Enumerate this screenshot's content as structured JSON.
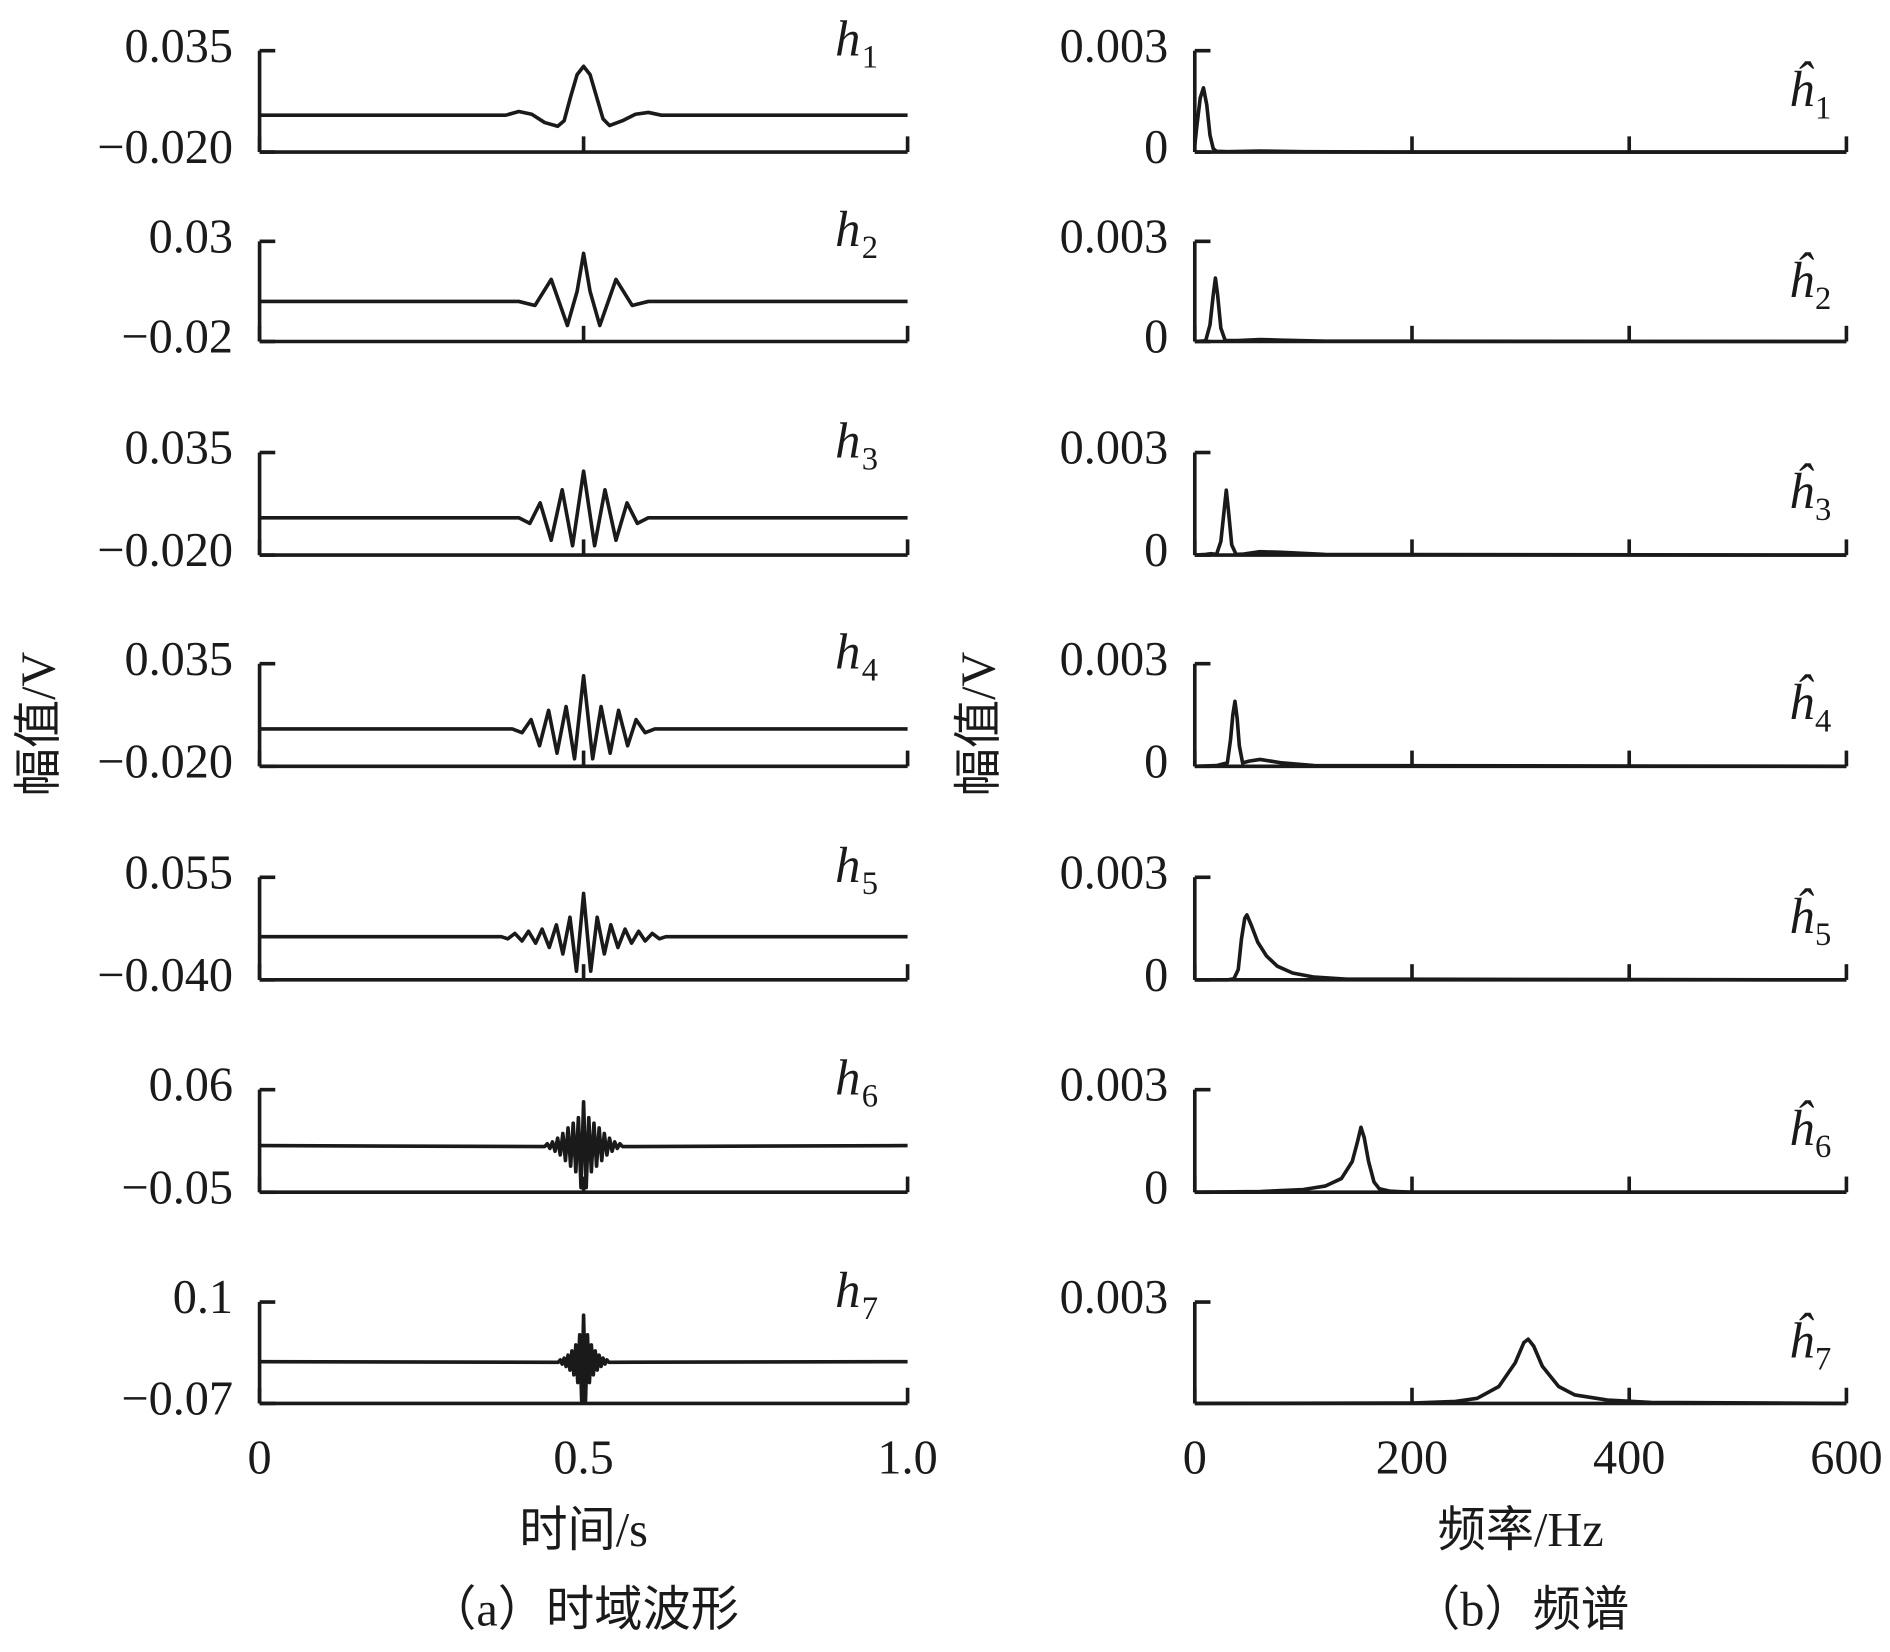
{
  "chart_data": [
    {
      "type": "line",
      "label": "h",
      "subscript": "1",
      "color": "#1a1a1a",
      "xlim": [
        0,
        1
      ],
      "xticks": [
        0,
        0.5,
        1
      ],
      "ylim": [
        -0.02,
        0.035
      ],
      "yticks": [
        {
          "value": -0.02,
          "label": "−0.020"
        },
        0.035
      ],
      "x": [
        0,
        0.38,
        0.4,
        0.42,
        0.44,
        0.46,
        0.47,
        0.48,
        0.49,
        0.5,
        0.51,
        0.52,
        0.53,
        0.54,
        0.56,
        0.58,
        0.6,
        0.62,
        1
      ],
      "values": [
        0,
        0,
        0.002,
        0.0005,
        -0.004,
        -0.006,
        -0.003,
        0.01,
        0.022,
        0.0265,
        0.022,
        0.01,
        -0.002,
        -0.0056,
        -0.003,
        0.0005,
        0.0015,
        0,
        0
      ]
    },
    {
      "type": "line",
      "label": "h",
      "subscript": "2",
      "color": "#1a1a1a",
      "xlim": [
        0,
        1
      ],
      "xticks": [
        0,
        0.5,
        1
      ],
      "ylim": [
        -0.02,
        0.03
      ],
      "yticks": [
        {
          "value": -0.02,
          "label": "−0.02"
        },
        0.03
      ],
      "x": [
        0,
        0.4,
        0.425,
        0.45,
        0.475,
        0.49,
        0.5,
        0.51,
        0.525,
        0.55,
        0.575,
        0.6,
        1
      ],
      "values": [
        0,
        0,
        -0.002,
        0.011,
        -0.012,
        0.005,
        0.024,
        0.005,
        -0.012,
        0.011,
        -0.002,
        0,
        0
      ]
    },
    {
      "type": "line",
      "label": "h",
      "subscript": "3",
      "color": "#1a1a1a",
      "xlim": [
        0,
        1
      ],
      "xticks": [
        0,
        0.5,
        1
      ],
      "ylim": [
        -0.02,
        0.035
      ],
      "yticks": [
        {
          "value": -0.02,
          "label": "−0.020"
        },
        0.035
      ],
      "x": [
        0,
        0.4,
        0.417,
        0.433,
        0.45,
        0.467,
        0.483,
        0.5,
        0.517,
        0.533,
        0.55,
        0.567,
        0.583,
        0.6,
        1
      ],
      "values": [
        0,
        0,
        -0.003,
        0.008,
        -0.012,
        0.015,
        -0.015,
        0.025,
        -0.015,
        0.015,
        -0.012,
        0.008,
        -0.003,
        0,
        0
      ]
    },
    {
      "type": "line",
      "label": "h",
      "subscript": "4",
      "color": "#1a1a1a",
      "ylabel": "幅值/V",
      "xlim": [
        0,
        1
      ],
      "xticks": [
        0,
        0.5,
        1
      ],
      "ylim": [
        -0.02,
        0.035
      ],
      "yticks": [
        {
          "value": -0.02,
          "label": "−0.020"
        },
        0.035
      ],
      "x": [
        0,
        0.39,
        0.405,
        0.419,
        0.432,
        0.446,
        0.459,
        0.473,
        0.486,
        0.5,
        0.514,
        0.527,
        0.541,
        0.554,
        0.568,
        0.581,
        0.595,
        0.61,
        1
      ],
      "values": [
        0,
        0,
        -0.002,
        0.005,
        -0.009,
        0.01,
        -0.013,
        0.012,
        -0.016,
        0.0285,
        -0.016,
        0.012,
        -0.013,
        0.01,
        -0.009,
        0.005,
        -0.002,
        0,
        0
      ]
    },
    {
      "type": "line",
      "label": "h",
      "subscript": "5",
      "color": "#1a1a1a",
      "xlim": [
        0,
        1
      ],
      "xticks": [
        0,
        0.5,
        1
      ],
      "ylim": [
        -0.04,
        0.055
      ],
      "yticks": [
        {
          "value": -0.04,
          "label": "−0.040"
        },
        0.055
      ],
      "x": [
        0,
        0.373,
        0.383,
        0.394,
        0.405,
        0.415,
        0.426,
        0.436,
        0.447,
        0.458,
        0.468,
        0.479,
        0.489,
        0.5,
        0.511,
        0.521,
        0.532,
        0.542,
        0.553,
        0.564,
        0.574,
        0.585,
        0.595,
        0.606,
        0.617,
        0.627,
        1
      ],
      "values": [
        0,
        0,
        -0.002,
        0.003,
        -0.004,
        0.005,
        -0.006,
        0.007,
        -0.01,
        0.011,
        -0.016,
        0.018,
        -0.032,
        0.04,
        -0.032,
        0.018,
        -0.016,
        0.011,
        -0.01,
        0.007,
        -0.006,
        0.005,
        -0.004,
        0.003,
        -0.002,
        0,
        0
      ]
    },
    {
      "type": "line",
      "label": "h",
      "subscript": "6",
      "color": "#1a1a1a",
      "xlim": [
        0,
        1
      ],
      "xticks": [
        0,
        0.5,
        1
      ],
      "ylim": [
        -0.05,
        0.06
      ],
      "yticks": [
        {
          "value": -0.05,
          "label": "−0.05"
        },
        0.06
      ],
      "x": [
        0,
        0.44,
        0.444,
        0.448,
        0.452,
        0.456,
        0.46,
        0.464,
        0.468,
        0.472,
        0.476,
        0.48,
        0.484,
        0.488,
        0.492,
        0.496,
        0.5,
        0.504,
        0.508,
        0.512,
        0.516,
        0.52,
        0.524,
        0.528,
        0.532,
        0.536,
        0.54,
        0.544,
        0.548,
        0.552,
        0.556,
        0.56,
        1
      ],
      "values": [
        0,
        -0.001,
        0.002,
        -0.003,
        0.004,
        -0.006,
        0.008,
        -0.01,
        0.013,
        -0.016,
        0.019,
        -0.022,
        0.024,
        -0.028,
        0.03,
        -0.045,
        0.047,
        -0.045,
        0.03,
        -0.028,
        0.024,
        -0.022,
        0.019,
        -0.016,
        0.013,
        -0.01,
        0.008,
        -0.006,
        0.004,
        -0.003,
        0.002,
        -0.001,
        0
      ]
    },
    {
      "type": "line",
      "label": "h",
      "subscript": "7",
      "color": "#1a1a1a",
      "xlabel": "时间/s",
      "caption": "（a）时域波形",
      "xlim": [
        0,
        1
      ],
      "xticks": [
        0,
        0.5,
        {
          "value": 1,
          "label": "1.0"
        }
      ],
      "ylim": [
        -0.07,
        0.1
      ],
      "yticks": [
        {
          "value": -0.07,
          "label": "−0.07"
        },
        0.1
      ],
      "x": [
        0,
        0.461,
        0.464,
        0.467,
        0.47,
        0.473,
        0.476,
        0.479,
        0.482,
        0.485,
        0.488,
        0.491,
        0.494,
        0.497,
        0.5,
        0.503,
        0.506,
        0.509,
        0.512,
        0.515,
        0.518,
        0.521,
        0.524,
        0.527,
        0.53,
        0.533,
        0.536,
        0.539,
        1
      ],
      "values": [
        0,
        -0.001,
        0.003,
        -0.004,
        0.006,
        -0.008,
        0.011,
        -0.014,
        0.018,
        -0.022,
        0.028,
        -0.035,
        0.045,
        -0.065,
        0.078,
        -0.065,
        0.045,
        -0.035,
        0.028,
        -0.022,
        0.018,
        -0.014,
        0.011,
        -0.008,
        0.006,
        -0.004,
        0.003,
        -0.001,
        0
      ]
    },
    {
      "type": "line",
      "label": "ĥ",
      "subscript": "1",
      "color": "#1a1a1a",
      "xlim": [
        0,
        600
      ],
      "xticks": [
        0,
        200,
        400,
        600
      ],
      "ylim": [
        0,
        0.003
      ],
      "yticks": [
        0,
        0.003
      ],
      "x": [
        0,
        2,
        5,
        8,
        11,
        14,
        17,
        20,
        30,
        60,
        100,
        200,
        600
      ],
      "values": [
        0.0002,
        0.0008,
        0.0016,
        0.0019,
        0.0014,
        0.0005,
        0.0001,
        2e-05,
        1e-05,
        3e-05,
        1e-05,
        0,
        0
      ]
    },
    {
      "type": "line",
      "label": "ĥ",
      "subscript": "2",
      "color": "#1a1a1a",
      "xlim": [
        0,
        600
      ],
      "xticks": [
        0,
        200,
        400,
        600
      ],
      "ylim": [
        0,
        0.003
      ],
      "yticks": [
        0,
        0.003
      ],
      "x": [
        0,
        10,
        14,
        17,
        19,
        21,
        24,
        28,
        40,
        60,
        80,
        120,
        600
      ],
      "values": [
        0,
        2e-05,
        0.0005,
        0.0014,
        0.0019,
        0.0014,
        0.0004,
        3e-05,
        3e-05,
        6e-05,
        4e-05,
        1e-05,
        0
      ]
    },
    {
      "type": "line",
      "label": "ĥ",
      "subscript": "3",
      "color": "#1a1a1a",
      "xlim": [
        0,
        600
      ],
      "xticks": [
        0,
        200,
        400,
        600
      ],
      "ylim": [
        0,
        0.003
      ],
      "yticks": [
        0,
        0.003
      ],
      "x": [
        0,
        10,
        15,
        20,
        24,
        27,
        29,
        31,
        34,
        38,
        45,
        60,
        80,
        120,
        600
      ],
      "values": [
        0,
        2e-05,
        4e-05,
        2e-05,
        0.0004,
        0.0013,
        0.0019,
        0.0013,
        0.0003,
        2e-05,
        3e-05,
        0.0001,
        8e-05,
        2e-05,
        0
      ]
    },
    {
      "type": "line",
      "label": "ĥ",
      "subscript": "4",
      "color": "#1a1a1a",
      "ylabel": "幅值/V",
      "xlim": [
        0,
        600
      ],
      "xticks": [
        0,
        200,
        400,
        600
      ],
      "ylim": [
        0,
        0.003
      ],
      "yticks": [
        0,
        0.003
      ],
      "x": [
        0,
        20,
        30,
        33,
        35,
        37,
        39,
        41,
        44,
        50,
        60,
        80,
        110,
        600
      ],
      "values": [
        0,
        2e-05,
        0.0001,
        0.0008,
        0.0015,
        0.0019,
        0.0014,
        0.0006,
        0.0001,
        0.00015,
        0.0002,
        0.0001,
        2e-05,
        0
      ]
    },
    {
      "type": "line",
      "label": "ĥ",
      "subscript": "5",
      "color": "#1a1a1a",
      "xlim": [
        0,
        600
      ],
      "xticks": [
        0,
        200,
        400,
        600
      ],
      "ylim": [
        0,
        0.003
      ],
      "yticks": [
        0,
        0.003
      ],
      "x": [
        0,
        30,
        36,
        40,
        43,
        46,
        48,
        52,
        58,
        66,
        76,
        90,
        110,
        140,
        600
      ],
      "values": [
        0,
        0,
        3e-05,
        0.0003,
        0.0012,
        0.0018,
        0.0019,
        0.0016,
        0.0011,
        0.0007,
        0.0004,
        0.0002,
        8e-05,
        2e-05,
        0
      ]
    },
    {
      "type": "line",
      "label": "ĥ",
      "subscript": "6",
      "color": "#1a1a1a",
      "xlim": [
        0,
        600
      ],
      "xticks": [
        0,
        200,
        400,
        600
      ],
      "ylim": [
        0,
        0.003
      ],
      "yticks": [
        0,
        0.003
      ],
      "x": [
        0,
        60,
        100,
        120,
        135,
        145,
        150,
        153,
        156,
        160,
        165,
        170,
        180,
        200,
        600
      ],
      "values": [
        0,
        2e-05,
        8e-05,
        0.00018,
        0.0004,
        0.0009,
        0.0015,
        0.0019,
        0.0016,
        0.0009,
        0.0003,
        0.0001,
        3e-05,
        0,
        0
      ]
    },
    {
      "type": "line",
      "label": "ĥ",
      "subscript": "7",
      "color": "#1a1a1a",
      "xlabel": "频率/Hz",
      "caption": "（b）频谱",
      "xlim": [
        0,
        600
      ],
      "xticks": [
        0,
        200,
        400,
        600
      ],
      "ylim": [
        0,
        0.003
      ],
      "yticks": [
        0.003
      ],
      "x": [
        0,
        200,
        240,
        260,
        280,
        295,
        303,
        307,
        312,
        320,
        335,
        350,
        380,
        420,
        600
      ],
      "values": [
        0,
        1e-05,
        6e-05,
        0.00015,
        0.0005,
        0.0012,
        0.0018,
        0.0019,
        0.0017,
        0.0011,
        0.0005,
        0.00025,
        0.0001,
        3e-05,
        0
      ]
    }
  ]
}
